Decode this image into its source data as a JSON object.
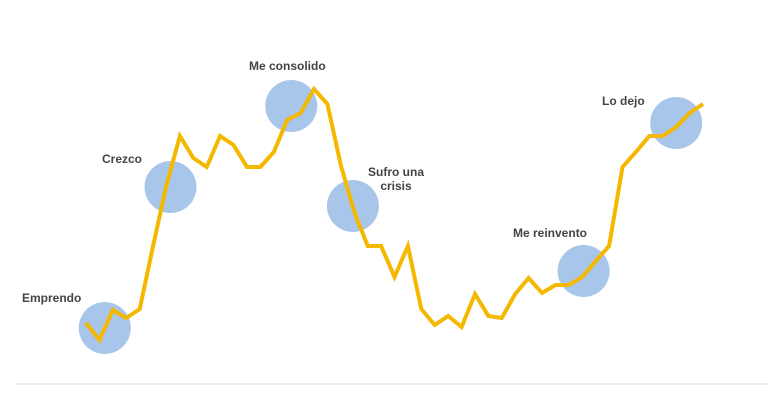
{
  "chart_data": {
    "type": "line",
    "values": [
      60,
      43,
      73,
      65,
      74,
      137,
      198,
      247,
      225,
      216,
      247,
      238,
      216,
      216,
      231,
      263,
      270,
      294,
      279,
      218,
      171,
      137,
      137,
      106,
      137,
      74,
      58,
      67,
      56,
      89,
      67,
      65,
      89,
      105,
      90,
      98,
      98,
      106,
      122,
      137,
      216,
      231,
      247,
      247,
      256,
      270,
      279
    ],
    "color": "#f5b800",
    "ylim": [
      0,
      383
    ],
    "annotations": [
      {
        "text": "Emprendo",
        "x": 1.4,
        "y": 55
      },
      {
        "text": "Crezco",
        "x": 6.3,
        "y": 196
      },
      {
        "text": "Me consolido",
        "x": 15.3,
        "y": 277
      },
      {
        "text": "Sufro una crisis",
        "x": 19.9,
        "y": 177
      },
      {
        "text": "Me reinvento",
        "x": 37.1,
        "y": 112
      },
      {
        "text": "Lo dejo",
        "x": 44.0,
        "y": 260
      }
    ],
    "marker_color": "#a3c3e8"
  }
}
